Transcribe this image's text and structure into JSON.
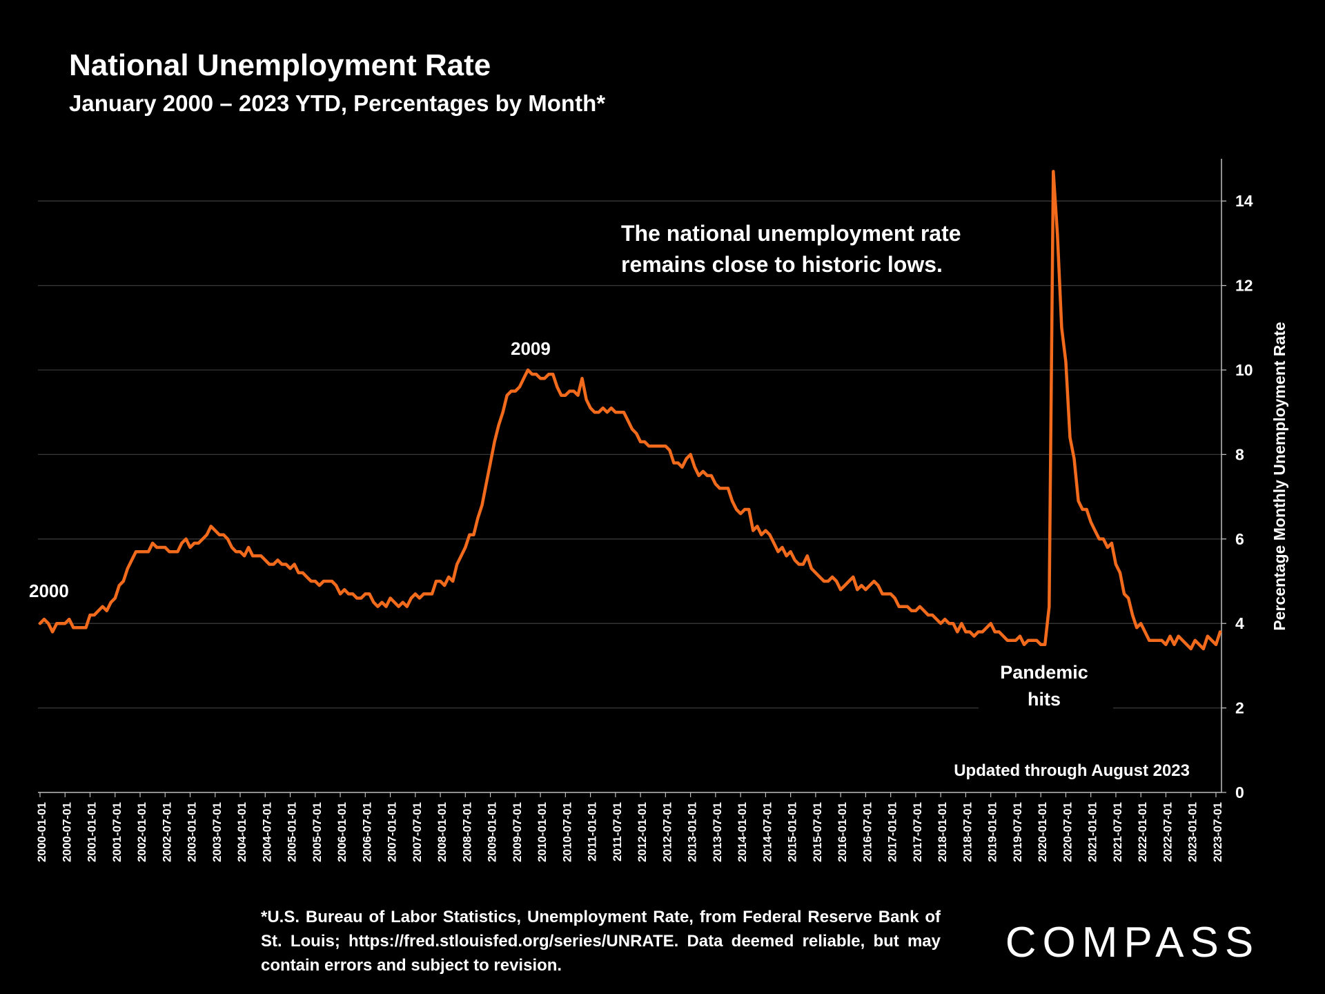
{
  "header": {
    "title": "National Unemployment Rate",
    "subtitle": "January 2000 – 2023 YTD, Percentages by Month*"
  },
  "footnote": {
    "text": "*U.S. Bureau of Labor Statistics, Unemployment Rate, from Federal Reserve Bank of St. Louis; https://fred.stlouisfed.org/series/UNRATE. Data deemed reliable, but may contain errors and subject to revision."
  },
  "logo": {
    "text": "COMPASS"
  },
  "chart_data": {
    "type": "line",
    "title": "",
    "xlabel": "",
    "ylabel": "Percentage Monthly Unemployment Rate",
    "ylim": [
      0,
      15
    ],
    "y_ticks": [
      0,
      2,
      4,
      6,
      8,
      10,
      12,
      14
    ],
    "y_axis_side": "right",
    "grid": "horizontal",
    "line_color": "#f26b1d",
    "x_start": "2000-01",
    "x_end": "2023-08",
    "x_tick_labels": [
      "2000-01-01",
      "2000-07-01",
      "2001-01-01",
      "2001-07-01",
      "2002-01-01",
      "2002-07-01",
      "2003-01-01",
      "2003-07-01",
      "2004-01-01",
      "2004-07-01",
      "2005-01-01",
      "2005-07-01",
      "2006-01-01",
      "2006-07-01",
      "2007-01-01",
      "2007-07-01",
      "2008-01-01",
      "2008-07-01",
      "2009-01-01",
      "2009-07-01",
      "2010-01-01",
      "2010-07-01",
      "2011-01-01",
      "2011-07-01",
      "2012-01-01",
      "2012-07-01",
      "2013-01-01",
      "2013-07-01",
      "2014-01-01",
      "2014-07-01",
      "2015-01-01",
      "2015-07-01",
      "2016-01-01",
      "2016-07-01",
      "2017-01-01",
      "2017-07-01",
      "2018-01-01",
      "2018-07-01",
      "2019-01-01",
      "2019-07-01",
      "2020-01-01",
      "2020-07-01",
      "2021-01-01",
      "2021-07-01",
      "2022-01-01",
      "2022-07-01",
      "2023-01-01",
      "2023-07-01"
    ],
    "series": [
      {
        "values": [
          4.0,
          4.1,
          4.0,
          3.8,
          4.0,
          4.0,
          4.0,
          4.1,
          3.9,
          3.9,
          3.9,
          3.9,
          4.2,
          4.2,
          4.3,
          4.4,
          4.3,
          4.5,
          4.6,
          4.9,
          5.0,
          5.3,
          5.5,
          5.7,
          5.7,
          5.7,
          5.7,
          5.9,
          5.8,
          5.8,
          5.8,
          5.7,
          5.7,
          5.7,
          5.9,
          6.0,
          5.8,
          5.9,
          5.9,
          6.0,
          6.1,
          6.3,
          6.2,
          6.1,
          6.1,
          6.0,
          5.8,
          5.7,
          5.7,
          5.6,
          5.8,
          5.6,
          5.6,
          5.6,
          5.5,
          5.4,
          5.4,
          5.5,
          5.4,
          5.4,
          5.3,
          5.4,
          5.2,
          5.2,
          5.1,
          5.0,
          5.0,
          4.9,
          5.0,
          5.0,
          5.0,
          4.9,
          4.7,
          4.8,
          4.7,
          4.7,
          4.6,
          4.6,
          4.7,
          4.7,
          4.5,
          4.4,
          4.5,
          4.4,
          4.6,
          4.5,
          4.4,
          4.5,
          4.4,
          4.6,
          4.7,
          4.6,
          4.7,
          4.7,
          4.7,
          5.0,
          5.0,
          4.9,
          5.1,
          5.0,
          5.4,
          5.6,
          5.8,
          6.1,
          6.1,
          6.5,
          6.8,
          7.3,
          7.8,
          8.3,
          8.7,
          9.0,
          9.4,
          9.5,
          9.5,
          9.6,
          9.8,
          10.0,
          9.9,
          9.9,
          9.8,
          9.8,
          9.9,
          9.9,
          9.6,
          9.4,
          9.4,
          9.5,
          9.5,
          9.4,
          9.8,
          9.3,
          9.1,
          9.0,
          9.0,
          9.1,
          9.0,
          9.1,
          9.0,
          9.0,
          9.0,
          8.8,
          8.6,
          8.5,
          8.3,
          8.3,
          8.2,
          8.2,
          8.2,
          8.2,
          8.2,
          8.1,
          7.8,
          7.8,
          7.7,
          7.9,
          8.0,
          7.7,
          7.5,
          7.6,
          7.5,
          7.5,
          7.3,
          7.2,
          7.2,
          7.2,
          6.9,
          6.7,
          6.6,
          6.7,
          6.7,
          6.2,
          6.3,
          6.1,
          6.2,
          6.1,
          5.9,
          5.7,
          5.8,
          5.6,
          5.7,
          5.5,
          5.4,
          5.4,
          5.6,
          5.3,
          5.2,
          5.1,
          5.0,
          5.0,
          5.1,
          5.0,
          4.8,
          4.9,
          5.0,
          5.1,
          4.8,
          4.9,
          4.8,
          4.9,
          5.0,
          4.9,
          4.7,
          4.7,
          4.7,
          4.6,
          4.4,
          4.4,
          4.4,
          4.3,
          4.3,
          4.4,
          4.3,
          4.2,
          4.2,
          4.1,
          4.0,
          4.1,
          4.0,
          4.0,
          3.8,
          4.0,
          3.8,
          3.8,
          3.7,
          3.8,
          3.8,
          3.9,
          4.0,
          3.8,
          3.8,
          3.7,
          3.6,
          3.6,
          3.6,
          3.7,
          3.5,
          3.6,
          3.6,
          3.6,
          3.5,
          3.5,
          4.4,
          14.7,
          13.2,
          11.0,
          10.2,
          8.4,
          7.9,
          6.9,
          6.7,
          6.7,
          6.4,
          6.2,
          6.0,
          6.0,
          5.8,
          5.9,
          5.4,
          5.2,
          4.7,
          4.6,
          4.2,
          3.9,
          4.0,
          3.8,
          3.6,
          3.6,
          3.6,
          3.6,
          3.5,
          3.7,
          3.5,
          3.7,
          3.6,
          3.5,
          3.4,
          3.6,
          3.5,
          3.4,
          3.7,
          3.6,
          3.5,
          3.8
        ]
      }
    ],
    "annotations": {
      "label_2000": "2000",
      "label_2009": "2009",
      "callout_line1": "The national unemployment rate",
      "callout_line2": "remains close to historic lows.",
      "pandemic_line1": "Pandemic",
      "pandemic_line2": "hits",
      "updated": "Updated through August 2023"
    }
  }
}
